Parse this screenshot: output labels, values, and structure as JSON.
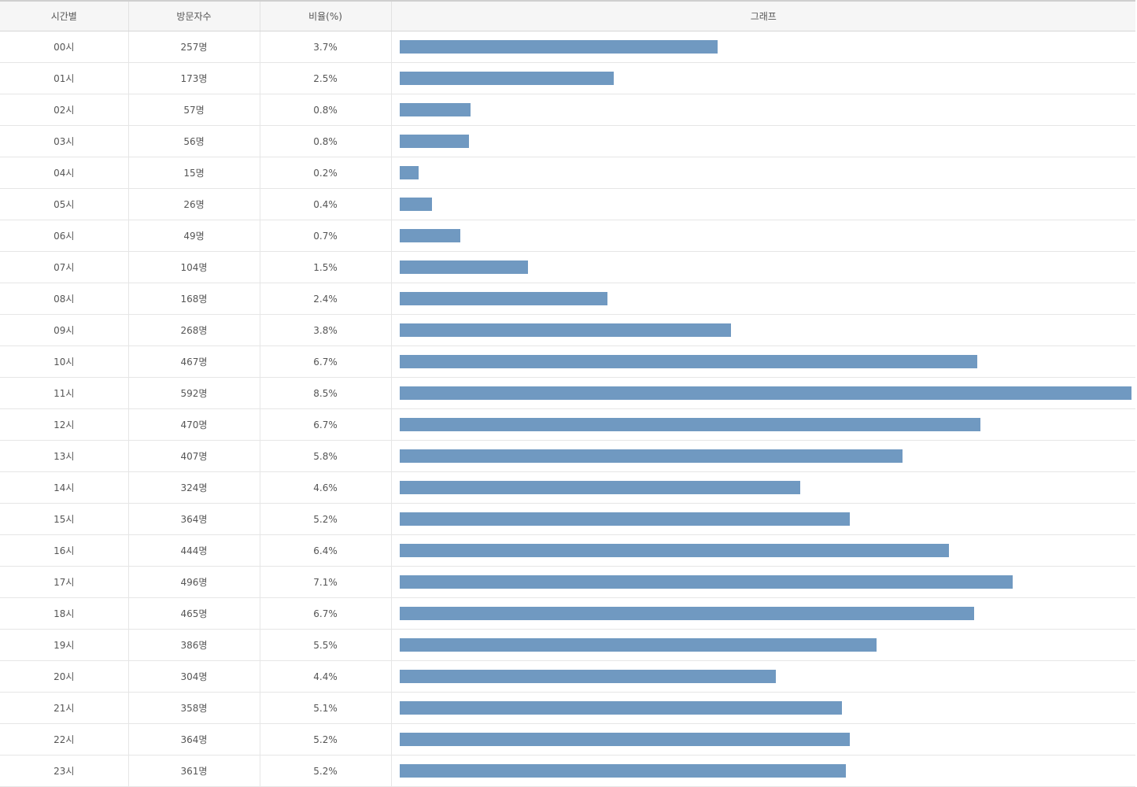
{
  "header": {
    "col_time": "시간별",
    "col_visitors": "방문자수",
    "col_ratio": "비율(%)",
    "col_graph": "그래프"
  },
  "colors": {
    "bar": "#7099c1"
  },
  "chart_data": {
    "type": "bar",
    "orientation": "horizontal",
    "categories": [
      "00시",
      "01시",
      "02시",
      "03시",
      "04시",
      "05시",
      "06시",
      "07시",
      "08시",
      "09시",
      "10시",
      "11시",
      "12시",
      "13시",
      "14시",
      "15시",
      "16시",
      "17시",
      "18시",
      "19시",
      "20시",
      "21시",
      "22시",
      "23시"
    ],
    "values": [
      257,
      173,
      57,
      56,
      15,
      26,
      49,
      104,
      168,
      268,
      467,
      592,
      470,
      407,
      324,
      364,
      444,
      496,
      465,
      386,
      304,
      358,
      364,
      361
    ],
    "max": 592
  },
  "rows": [
    {
      "time": "00시",
      "visitors": "257명",
      "ratio": "3.7%"
    },
    {
      "time": "01시",
      "visitors": "173명",
      "ratio": "2.5%"
    },
    {
      "time": "02시",
      "visitors": "57명",
      "ratio": "0.8%"
    },
    {
      "time": "03시",
      "visitors": "56명",
      "ratio": "0.8%"
    },
    {
      "time": "04시",
      "visitors": "15명",
      "ratio": "0.2%"
    },
    {
      "time": "05시",
      "visitors": "26명",
      "ratio": "0.4%"
    },
    {
      "time": "06시",
      "visitors": "49명",
      "ratio": "0.7%"
    },
    {
      "time": "07시",
      "visitors": "104명",
      "ratio": "1.5%"
    },
    {
      "time": "08시",
      "visitors": "168명",
      "ratio": "2.4%"
    },
    {
      "time": "09시",
      "visitors": "268명",
      "ratio": "3.8%"
    },
    {
      "time": "10시",
      "visitors": "467명",
      "ratio": "6.7%"
    },
    {
      "time": "11시",
      "visitors": "592명",
      "ratio": "8.5%"
    },
    {
      "time": "12시",
      "visitors": "470명",
      "ratio": "6.7%"
    },
    {
      "time": "13시",
      "visitors": "407명",
      "ratio": "5.8%"
    },
    {
      "time": "14시",
      "visitors": "324명",
      "ratio": "4.6%"
    },
    {
      "time": "15시",
      "visitors": "364명",
      "ratio": "5.2%"
    },
    {
      "time": "16시",
      "visitors": "444명",
      "ratio": "6.4%"
    },
    {
      "time": "17시",
      "visitors": "496명",
      "ratio": "7.1%"
    },
    {
      "time": "18시",
      "visitors": "465명",
      "ratio": "6.7%"
    },
    {
      "time": "19시",
      "visitors": "386명",
      "ratio": "5.5%"
    },
    {
      "time": "20시",
      "visitors": "304명",
      "ratio": "4.4%"
    },
    {
      "time": "21시",
      "visitors": "358명",
      "ratio": "5.1%"
    },
    {
      "time": "22시",
      "visitors": "364명",
      "ratio": "5.2%"
    },
    {
      "time": "23시",
      "visitors": "361명",
      "ratio": "5.2%"
    }
  ]
}
